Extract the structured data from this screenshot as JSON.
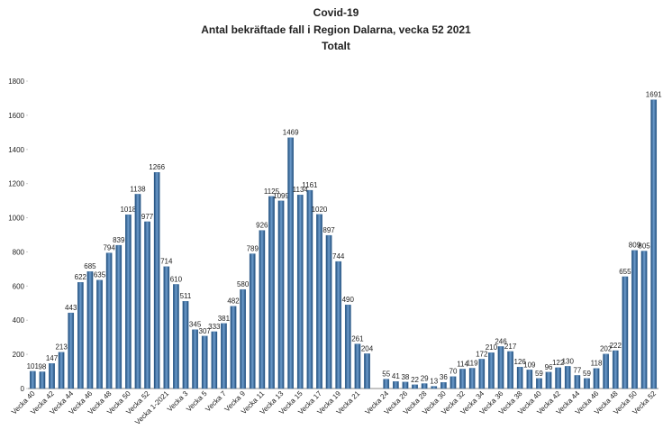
{
  "chart_data": {
    "type": "bar",
    "title": "Covid-19",
    "subtitle": "Antal bekräftade fall i Region Dalarna, vecka 52 2021",
    "subtitle2": "Totalt",
    "categories": [
      "Vecka 40",
      null,
      "Vecka 42",
      null,
      "Vecka 44",
      null,
      "Vecka 46",
      null,
      "Vecka 48",
      null,
      "Vecka 50",
      null,
      "Vecka 52",
      null,
      "Vecka 1-2021",
      null,
      "Vecka 3",
      null,
      "Vecka 5",
      null,
      "Vecka 7",
      null,
      "Vecka 9",
      null,
      "Vecka 11",
      null,
      "Vecka 13",
      null,
      "Vecka 15",
      null,
      "Vecka 17",
      null,
      "Vecka 19",
      null,
      "Vecka 21",
      null,
      null,
      "Vecka 24",
      null,
      "Vecka 26",
      null,
      "Vecka 28",
      null,
      "Vecka 30",
      null,
      "Vecka 32",
      null,
      "Vecka 34",
      null,
      "Vecka 36",
      null,
      "Vecka 38",
      null,
      "Vecka 40",
      null,
      "Vecka 42",
      null,
      "Vecka 44",
      null,
      "Vecka 46",
      null,
      "Vecka 48",
      null,
      "Vecka 50",
      null,
      "Vecka 52"
    ],
    "values": [
      101,
      98,
      147,
      213,
      443,
      622,
      685,
      635,
      794,
      839,
      1018,
      1138,
      977,
      1266,
      714,
      610,
      511,
      345,
      307,
      333,
      381,
      482,
      580,
      789,
      926,
      1125,
      1099,
      1469,
      1134,
      1161,
      1020,
      897,
      744,
      490,
      261,
      204,
      null,
      55,
      41,
      38,
      22,
      29,
      13,
      36,
      70,
      114,
      119,
      172,
      210,
      246,
      217,
      126,
      109,
      59,
      96,
      122,
      130,
      77,
      59,
      118,
      202,
      222,
      655,
      809,
      805,
      1691
    ],
    "color": "#2f6293",
    "ylim": [
      0,
      1800
    ],
    "yticks": [
      0,
      200,
      400,
      600,
      800,
      1000,
      1200,
      1400,
      1600,
      1800
    ],
    "grid": false
  }
}
